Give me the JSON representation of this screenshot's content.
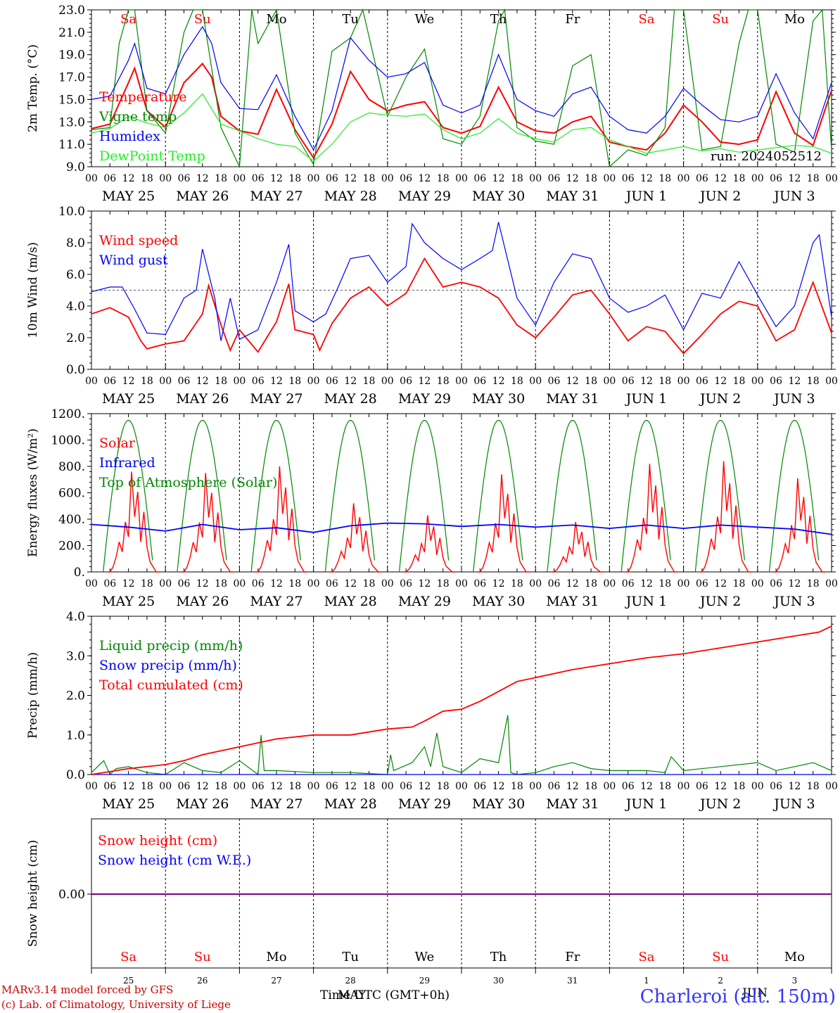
{
  "station": "Charleroi (alt. 150m)",
  "credits": [
    "MARv3.14 model forced by GFS",
    "(c) Lab. of Climatology, University of Liege"
  ],
  "run_label": "run: 2024052512",
  "time_axis_label": "Time UTC (GMT+0h)",
  "time_axis_overlap": "MAY",
  "time_axis_overlap2": "JUN",
  "colors": {
    "red": "#ff0000",
    "green": "#008800",
    "blue": "#0000ff",
    "lightgreen": "#22ee22",
    "purple": "#800080",
    "weekend": "#ff0000",
    "weekday": "#000000"
  },
  "days": [
    {
      "date": "MAY 25",
      "dow": "Sa",
      "num": "25"
    },
    {
      "date": "MAY 26",
      "dow": "Su",
      "num": "26"
    },
    {
      "date": "MAY 27",
      "dow": "Mo",
      "num": "27"
    },
    {
      "date": "MAY 28",
      "dow": "Tu",
      "num": "28"
    },
    {
      "date": "MAY 29",
      "dow": "We",
      "num": "29"
    },
    {
      "date": "MAY 30",
      "dow": "Th",
      "num": "30"
    },
    {
      "date": "MAY 31",
      "dow": "Fr",
      "num": "31"
    },
    {
      "date": "JUN  1",
      "dow": "Sa",
      "num": "1"
    },
    {
      "date": "JUN  2",
      "dow": "Su",
      "num": "2"
    },
    {
      "date": "JUN  3",
      "dow": "Mo",
      "num": "3"
    }
  ],
  "hour_ticks": [
    "00",
    "06",
    "12",
    "18"
  ],
  "chart_data": [
    {
      "type": "line",
      "ylabel": "2m Temp. (°C)",
      "ylim": [
        9,
        23
      ],
      "yticks": [
        "9.0",
        "11.0",
        "13.0",
        "15.0",
        "17.0",
        "19.0",
        "21.0",
        "23.0"
      ],
      "x_unit": "hours since MAY 25 00 UTC",
      "series": [
        {
          "name": "Temperature",
          "color": "#ff0000",
          "x": [
            0,
            6,
            12,
            14,
            18,
            24,
            30,
            36,
            39,
            42,
            48,
            54,
            60,
            66,
            72,
            78,
            84,
            90,
            96,
            102,
            108,
            114,
            120,
            126,
            132,
            138,
            144,
            150,
            156,
            162,
            168,
            174,
            180,
            186,
            192,
            198,
            204,
            210,
            216,
            222,
            228,
            234,
            240
          ],
          "y": [
            12.4,
            12.8,
            16.5,
            17.8,
            14.0,
            12.5,
            16.5,
            18.2,
            17.0,
            13.5,
            12.2,
            11.9,
            15.9,
            12.3,
            9.8,
            12.8,
            17.5,
            15.0,
            14.0,
            14.5,
            14.8,
            12.5,
            12.0,
            12.6,
            16.1,
            13.0,
            12.2,
            12.0,
            13.0,
            13.5,
            11.2,
            10.8,
            10.5,
            12.0,
            14.5,
            13.0,
            11.2,
            11.0,
            11.4,
            15.7,
            12.0,
            10.9,
            15.8
          ]
        },
        {
          "name": "Vigne temp",
          "color": "#008800",
          "x": [
            0,
            6,
            9,
            12,
            14,
            18,
            24,
            30,
            33,
            36,
            42,
            48,
            52,
            54,
            60,
            66,
            72,
            78,
            84,
            88,
            96,
            102,
            108,
            114,
            120,
            126,
            132,
            134,
            138,
            144,
            150,
            156,
            162,
            168,
            174,
            180,
            186,
            189,
            192,
            198,
            204,
            210,
            213,
            216,
            222,
            228,
            234,
            237,
            240
          ],
          "y": [
            12.3,
            12.5,
            20.0,
            23.0,
            23.0,
            14.0,
            12.0,
            21.0,
            23.0,
            23.0,
            12.5,
            9.0,
            23.0,
            20.0,
            23.0,
            12.0,
            9.2,
            19.3,
            20.5,
            23.0,
            13.5,
            17.0,
            19.5,
            11.5,
            11.0,
            13.5,
            22.0,
            23.0,
            12.5,
            11.3,
            11.0,
            18.0,
            19.0,
            9.0,
            10.5,
            10.0,
            12.5,
            23.0,
            23.0,
            10.5,
            10.8,
            20.0,
            23.0,
            23.0,
            11.0,
            10.3,
            22.0,
            23.0,
            10.5
          ]
        },
        {
          "name": "Humidex",
          "color": "#0000ff",
          "x": [
            0,
            6,
            12,
            14,
            18,
            24,
            30,
            36,
            39,
            42,
            48,
            54,
            60,
            66,
            72,
            78,
            84,
            90,
            96,
            102,
            108,
            114,
            120,
            126,
            132,
            138,
            144,
            150,
            156,
            162,
            168,
            174,
            180,
            186,
            192,
            198,
            204,
            210,
            216,
            222,
            228,
            234,
            240
          ],
          "y": [
            15.0,
            15.3,
            18.5,
            20.0,
            16.0,
            15.5,
            19.0,
            21.5,
            20.0,
            16.5,
            14.2,
            14.1,
            17.2,
            13.5,
            10.5,
            14.0,
            20.5,
            18.5,
            17.0,
            17.3,
            18.3,
            14.5,
            13.8,
            14.5,
            19.0,
            15.0,
            14.0,
            13.5,
            15.5,
            16.1,
            13.5,
            12.3,
            12.0,
            13.5,
            16.0,
            14.5,
            13.2,
            13.0,
            13.5,
            17.3,
            13.8,
            11.5,
            16.5
          ]
        },
        {
          "name": "DewPoint Temp",
          "color": "#22ee22",
          "x": [
            0,
            6,
            12,
            18,
            24,
            30,
            36,
            42,
            48,
            54,
            60,
            66,
            72,
            78,
            84,
            90,
            96,
            102,
            108,
            114,
            120,
            126,
            132,
            138,
            144,
            150,
            156,
            162,
            168,
            174,
            180,
            186,
            192,
            198,
            204,
            210,
            216,
            222,
            228,
            234,
            240
          ],
          "y": [
            12.0,
            12.4,
            13.5,
            12.9,
            12.5,
            13.8,
            15.5,
            12.8,
            12.2,
            11.5,
            11.0,
            10.8,
            9.5,
            11.0,
            13.0,
            13.8,
            13.6,
            13.5,
            13.7,
            12.3,
            11.5,
            12.0,
            13.3,
            12.0,
            11.5,
            11.2,
            12.3,
            12.5,
            11.4,
            10.8,
            10.2,
            10.5,
            10.8,
            10.4,
            10.6,
            10.3,
            10.5,
            10.7,
            10.9,
            10.8,
            10.2
          ]
        }
      ]
    },
    {
      "type": "line",
      "ylabel": "10m Wind (m/s)",
      "ylim": [
        0,
        10
      ],
      "yticks": [
        "0.0",
        "2.0",
        "4.0",
        "6.0",
        "8.0",
        "10.0"
      ],
      "reference_line": 5,
      "series": [
        {
          "name": "Wind speed",
          "color": "#ff0000",
          "x": [
            0,
            6,
            12,
            16,
            18,
            24,
            30,
            36,
            38,
            42,
            45,
            48,
            54,
            60,
            64,
            66,
            72,
            74,
            78,
            84,
            90,
            96,
            102,
            108,
            114,
            120,
            126,
            132,
            138,
            144,
            150,
            156,
            162,
            168,
            174,
            180,
            186,
            192,
            198,
            204,
            210,
            216,
            222,
            228,
            234,
            240
          ],
          "y": [
            3.5,
            3.9,
            3.3,
            1.8,
            1.3,
            1.6,
            1.8,
            3.5,
            5.3,
            2.8,
            1.2,
            2.5,
            1.1,
            3.0,
            5.4,
            2.5,
            2.2,
            1.2,
            2.9,
            4.5,
            5.2,
            4.0,
            4.8,
            7.0,
            5.2,
            5.5,
            5.2,
            4.5,
            2.8,
            2.0,
            3.3,
            4.7,
            5.0,
            3.5,
            1.8,
            2.7,
            2.4,
            1.0,
            2.2,
            3.5,
            4.3,
            4.0,
            1.8,
            2.5,
            5.5,
            2.3
          ]
        },
        {
          "name": "Wind gust",
          "color": "#0000ff",
          "x": [
            0,
            6,
            10,
            14,
            18,
            24,
            30,
            34,
            36,
            40,
            42,
            45,
            48,
            54,
            60,
            64,
            66,
            72,
            76,
            80,
            84,
            90,
            96,
            102,
            104,
            108,
            114,
            120,
            126,
            130,
            132,
            138,
            144,
            150,
            156,
            162,
            168,
            174,
            180,
            186,
            192,
            198,
            204,
            210,
            216,
            222,
            228,
            234,
            236,
            240
          ],
          "y": [
            4.9,
            5.2,
            5.2,
            3.8,
            2.3,
            2.2,
            4.5,
            5.0,
            7.6,
            4.5,
            1.8,
            4.5,
            1.9,
            2.5,
            5.5,
            7.9,
            3.7,
            3.0,
            3.5,
            5.2,
            7.0,
            7.2,
            5.5,
            6.5,
            9.2,
            8.0,
            7.0,
            6.3,
            7.0,
            7.5,
            9.3,
            4.5,
            2.8,
            5.5,
            7.3,
            7.0,
            4.5,
            3.6,
            4.0,
            4.7,
            2.5,
            4.8,
            4.5,
            6.8,
            4.7,
            2.7,
            4.0,
            8.0,
            8.5,
            3.3
          ]
        }
      ]
    },
    {
      "type": "line",
      "ylabel": "Energy fluxes (W/m²)",
      "ylim": [
        0,
        1200
      ],
      "yticks": [
        "0.",
        "200.",
        "400.",
        "600.",
        "800.",
        "1000.",
        "1200."
      ],
      "series": [
        {
          "name": "Solar",
          "color": "#ff0000",
          "peaks": [
            760,
            750,
            800,
            520,
            430,
            740,
            380,
            820,
            840,
            710
          ]
        },
        {
          "name": "Infrared",
          "color": "#0000ff",
          "x": [
            0,
            12,
            24,
            36,
            48,
            60,
            72,
            84,
            96,
            108,
            120,
            132,
            144,
            156,
            168,
            180,
            192,
            204,
            216,
            228,
            240
          ],
          "y": [
            360,
            340,
            310,
            360,
            320,
            335,
            300,
            350,
            370,
            365,
            345,
            360,
            340,
            355,
            330,
            355,
            330,
            355,
            340,
            325,
            285
          ]
        },
        {
          "name": "Top of Atmosphere (Solar)",
          "color": "#008800",
          "peak": 1150
        }
      ]
    },
    {
      "type": "line",
      "ylabel": "Precip (mm/h)",
      "ylim": [
        0,
        4
      ],
      "yticks": [
        "0.0",
        "1.0",
        "2.0",
        "3.0",
        "4.0"
      ],
      "series": [
        {
          "name": "Liquid precip (mm/h)",
          "color": "#008800",
          "x": [
            0,
            4,
            6,
            8,
            12,
            18,
            24,
            30,
            33,
            36,
            42,
            48,
            54,
            55,
            56,
            60,
            72,
            84,
            96,
            97,
            98,
            104,
            108,
            110,
            112,
            114,
            120,
            126,
            132,
            135,
            136,
            138,
            144,
            150,
            156,
            162,
            168,
            180,
            186,
            188,
            192,
            204,
            216,
            222,
            228,
            234,
            240
          ],
          "y": [
            0.05,
            0.35,
            0.0,
            0.15,
            0.2,
            0.05,
            0.0,
            0.3,
            0.2,
            0.1,
            0.05,
            0.35,
            0.0,
            1.0,
            0.1,
            0.1,
            0.05,
            0.05,
            0.0,
            0.5,
            0.1,
            0.3,
            0.7,
            0.2,
            1.05,
            0.2,
            0.05,
            0.4,
            0.3,
            1.5,
            0.05,
            0.0,
            0.05,
            0.2,
            0.3,
            0.15,
            0.1,
            0.1,
            0.05,
            0.45,
            0.1,
            0.2,
            0.3,
            0.1,
            0.2,
            0.3,
            0.1
          ]
        },
        {
          "name": "Snow precip (mm/h)",
          "color": "#0000ff",
          "x": [
            0,
            240
          ],
          "y": [
            0.0,
            0.0
          ]
        },
        {
          "name": "Total cumulated (cm)",
          "color": "#ff0000",
          "x": [
            0,
            12,
            24,
            30,
            36,
            48,
            60,
            72,
            84,
            96,
            104,
            108,
            114,
            120,
            126,
            132,
            138,
            144,
            156,
            168,
            180,
            192,
            204,
            216,
            228,
            236,
            240
          ],
          "y": [
            0.0,
            0.15,
            0.25,
            0.35,
            0.5,
            0.7,
            0.9,
            1.0,
            1.0,
            1.15,
            1.2,
            1.35,
            1.6,
            1.65,
            1.85,
            2.1,
            2.35,
            2.45,
            2.65,
            2.8,
            2.95,
            3.05,
            3.2,
            3.35,
            3.5,
            3.6,
            3.75
          ]
        }
      ]
    },
    {
      "type": "line",
      "ylabel": "Snow height (cm)",
      "yticks": [
        "0.00"
      ],
      "series": [
        {
          "name": "Snow height (cm)",
          "color": "#ff0000",
          "x": [
            0,
            240
          ],
          "y": [
            0,
            0
          ]
        },
        {
          "name": "Snow height (cm W.E.)",
          "color": "#0000ff",
          "x": [
            0,
            240
          ],
          "y": [
            0,
            0
          ]
        }
      ]
    }
  ]
}
